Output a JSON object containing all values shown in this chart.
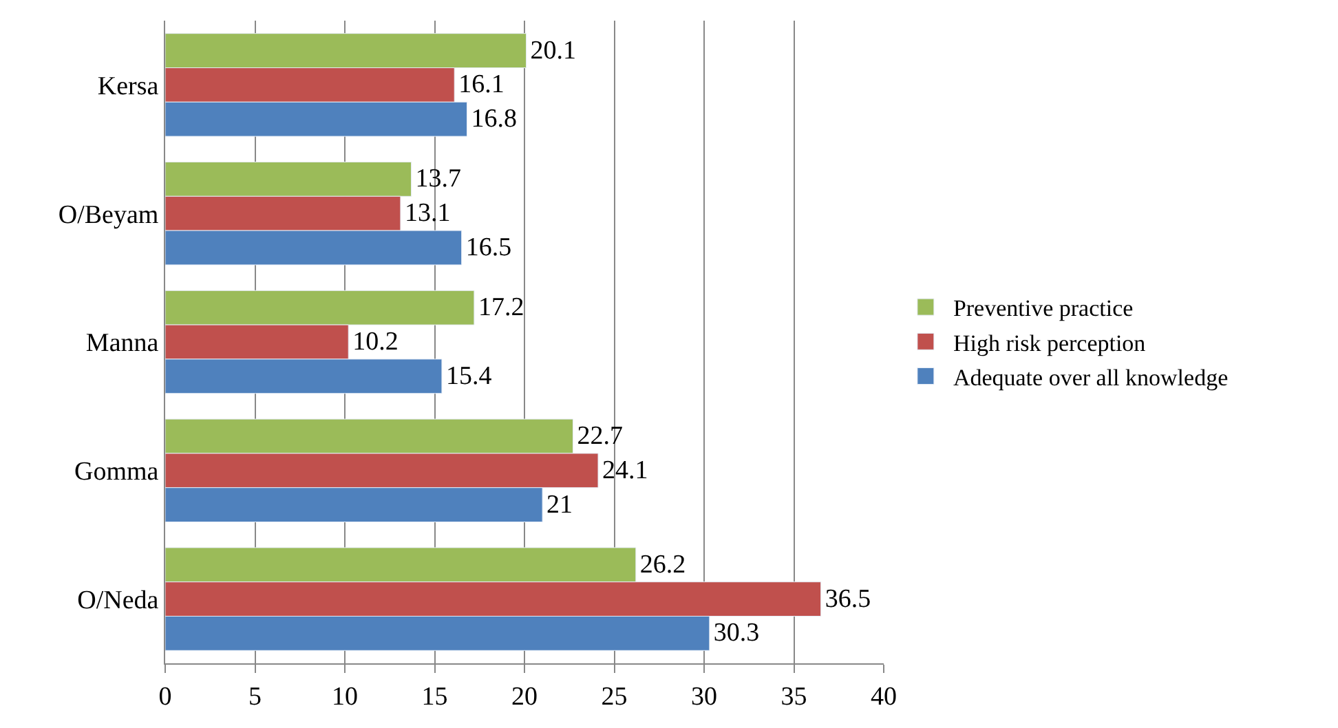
{
  "chart_data": {
    "type": "bar",
    "orientation": "horizontal",
    "categories": [
      "Kersa",
      "O/Beyam",
      "Manna",
      "Gomma",
      "O/Neda"
    ],
    "series": [
      {
        "name": "Preventive practice",
        "color": "#9bbb59",
        "values": [
          20.1,
          13.7,
          17.2,
          22.7,
          26.2
        ]
      },
      {
        "name": "High risk perception",
        "color": "#c0504d",
        "values": [
          16.1,
          13.1,
          10.2,
          24.1,
          36.5
        ]
      },
      {
        "name": "Adequate over all knowledge",
        "color": "#4f81bd",
        "values": [
          16.8,
          16.5,
          15.4,
          21,
          30.3
        ]
      }
    ],
    "xlim": [
      0,
      40
    ],
    "xticks": [
      0,
      5,
      10,
      15,
      20,
      25,
      30,
      35,
      40
    ],
    "grid": "x",
    "legend": "right",
    "data_labels": true
  }
}
